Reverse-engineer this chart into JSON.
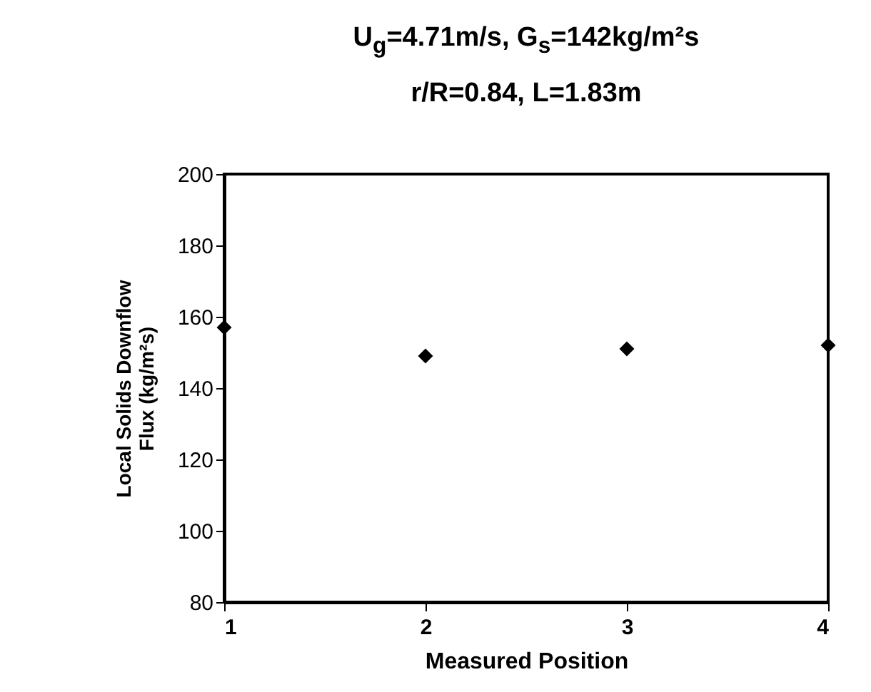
{
  "chart_data": {
    "type": "scatter",
    "title": "U$_{g}$=4.71m/s, G$_{s}$=142kg/m²s",
    "subtitle": "r/R=0.84, L=1.83m",
    "xlabel": "Measured Position",
    "ylabel": "Local Solids Downflow Flux (kg/m²s)",
    "x": [
      1,
      2,
      3,
      4
    ],
    "series": [
      {
        "color": "#000000",
        "values": [
          157,
          149,
          151,
          152
        ]
      }
    ],
    "xlim": [
      1,
      4
    ],
    "xticks": [
      1,
      2,
      3,
      4
    ],
    "ylim": [
      80,
      200
    ],
    "yticks": [
      80,
      100,
      120,
      140,
      160,
      180,
      200
    ],
    "marker": "diamond"
  }
}
